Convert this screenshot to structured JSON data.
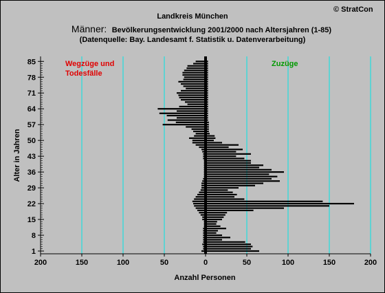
{
  "header": {
    "title": "Landkreis München",
    "subtitle_prefix": "Männer:",
    "subtitle_rest": "Bevölkerungsentwicklung 2001/2000  nach Altersjahren (1-85)",
    "source": "(Datenquelle: Bay. Landesamt f. Statistik u. Datenverarbeitung)",
    "copyright": "© StratCon"
  },
  "colors": {
    "background": "#c0c0c0",
    "grid": "#00e5e5",
    "bar": "#000000",
    "out_label": "#e00000",
    "in_label": "#009900"
  },
  "chart_data": {
    "type": "bar",
    "orientation": "horizontal",
    "title": "Männer: Bevölkerungsentwicklung 2001/2000  nach Altersjahren (1-85)",
    "xlabel": "Anzahl Personen",
    "ylabel": "Alter in Jahren",
    "xlim": [
      -200,
      200
    ],
    "ylim": [
      1,
      86
    ],
    "x_ticks": [
      "200",
      "150",
      "100",
      "50",
      "0",
      "50",
      "100",
      "150",
      "200"
    ],
    "y_ticks": [
      "1",
      "8",
      "15",
      "22",
      "29",
      "36",
      "43",
      "50",
      "57",
      "64",
      "71",
      "78",
      "85"
    ],
    "annotations": {
      "left": [
        "Wegzüge und",
        "Todesfälle"
      ],
      "right": "Zuzüge"
    },
    "ages": [
      1,
      2,
      3,
      4,
      5,
      6,
      7,
      8,
      9,
      10,
      11,
      12,
      13,
      14,
      15,
      16,
      17,
      18,
      19,
      20,
      21,
      22,
      23,
      24,
      25,
      26,
      27,
      28,
      29,
      30,
      31,
      32,
      33,
      34,
      35,
      36,
      37,
      38,
      39,
      40,
      41,
      42,
      43,
      44,
      45,
      46,
      47,
      48,
      49,
      50,
      51,
      52,
      53,
      54,
      55,
      56,
      57,
      58,
      59,
      60,
      61,
      62,
      63,
      64,
      65,
      66,
      67,
      68,
      69,
      70,
      71,
      72,
      73,
      74,
      75,
      76,
      77,
      78,
      79,
      80,
      81,
      82,
      83,
      84,
      85
    ],
    "series": [
      {
        "values": [
          -5,
          -3,
          -3,
          -4,
          -3,
          -3,
          -3,
          -3,
          -3,
          -3,
          -3,
          -2,
          -2,
          -2,
          -4,
          -4,
          -6,
          -8,
          -10,
          -12,
          -14,
          -15,
          -16,
          -14,
          -12,
          -10,
          -8,
          -6,
          -5,
          -5,
          -5,
          -4,
          -3,
          -2,
          -2,
          -2,
          -2,
          -2,
          -2,
          -2,
          -2,
          -3,
          -3,
          -3,
          -4,
          -5,
          -8,
          -12,
          -16,
          -16,
          -20,
          -14,
          -12,
          -15,
          -17,
          -24,
          -52,
          -36,
          -46,
          -35,
          -47,
          -56,
          -35,
          -58,
          -32,
          -22,
          -25,
          -30,
          -32,
          -33,
          -35,
          -30,
          -24,
          -27,
          -30,
          -33,
          -27,
          -26,
          -28,
          -28,
          -26,
          -23,
          -22,
          -15,
          -12
        ]
      },
      {
        "values": [
          65,
          55,
          57,
          55,
          48,
          20,
          30,
          20,
          13,
          15,
          25,
          18,
          13,
          14,
          20,
          22,
          24,
          26,
          58,
          95,
          150,
          180,
          142,
          47,
          35,
          38,
          33,
          27,
          40,
          60,
          70,
          90,
          80,
          87,
          77,
          95,
          80,
          65,
          70,
          55,
          55,
          47,
          37,
          55,
          37,
          45,
          28,
          40,
          20,
          10,
          12,
          11,
          5,
          4,
          4,
          4,
          4,
          4,
          3,
          3,
          3,
          3,
          3,
          3,
          3,
          3,
          3,
          3,
          3,
          3,
          3,
          3,
          3,
          3,
          3,
          3,
          3,
          3,
          3,
          3,
          3,
          3,
          3,
          3,
          3
        ]
      }
    ]
  }
}
